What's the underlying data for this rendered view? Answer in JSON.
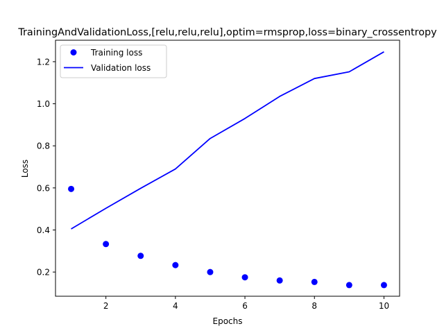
{
  "chart_data": {
    "type": "line",
    "title": "TrainingAndValidationLoss,[relu,relu,relu],optim=rmsprop,loss=binary_crossentropy",
    "xlabel": "Epochs",
    "ylabel": "Loss",
    "xlim": [
      0.55,
      10.45
    ],
    "ylim": [
      0.085,
      1.302
    ],
    "xticks": [
      2,
      4,
      6,
      8,
      10
    ],
    "yticks": [
      0.2,
      0.4,
      0.6,
      0.8,
      1.0,
      1.2
    ],
    "xtick_labels": [
      "2",
      "4",
      "6",
      "8",
      "10"
    ],
    "ytick_labels": [
      "0.2",
      "0.4",
      "0.6",
      "0.8",
      "1.0",
      "1.2"
    ],
    "grid": false,
    "legend_position": "top-left",
    "x": [
      1,
      2,
      3,
      4,
      5,
      6,
      7,
      8,
      9,
      10
    ],
    "series": [
      {
        "name": "Training loss",
        "style": "markers",
        "color": "#0000ff",
        "values": [
          0.595,
          0.333,
          0.277,
          0.233,
          0.2,
          0.175,
          0.16,
          0.153,
          0.138,
          0.138
        ]
      },
      {
        "name": "Validation loss",
        "style": "line",
        "color": "#0000ff",
        "values": [
          0.405,
          0.503,
          0.598,
          0.69,
          0.835,
          0.93,
          1.035,
          1.12,
          1.152,
          1.247
        ]
      }
    ]
  }
}
